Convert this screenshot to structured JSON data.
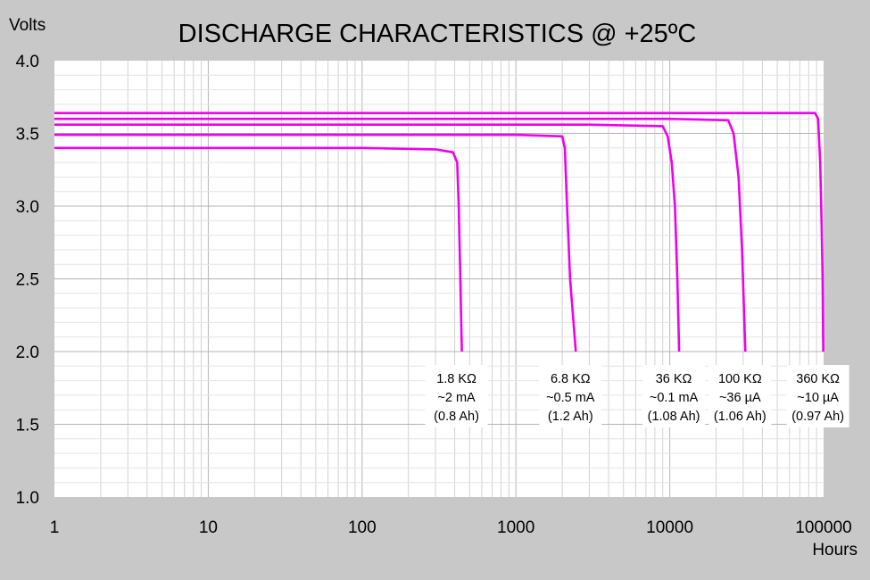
{
  "chart_data": {
    "type": "line",
    "title": "DISCHARGE CHARACTERISTICS @ +25ºC",
    "ylabel": "Volts",
    "xlabel": "Hours",
    "x_scale": "log",
    "xlim": [
      1,
      100000
    ],
    "ylim": [
      1.0,
      4.0
    ],
    "x_ticks": [
      1,
      10,
      100,
      1000,
      10000,
      100000
    ],
    "x_tick_labels": [
      "1",
      "10",
      "100",
      "1000",
      "10000",
      "100000"
    ],
    "y_ticks": [
      1.0,
      1.5,
      2.0,
      2.5,
      3.0,
      3.5,
      4.0
    ],
    "y_tick_labels": [
      "1.0",
      "1.5",
      "2.0",
      "2.5",
      "3.0",
      "3.5",
      "4.0"
    ],
    "grid": true,
    "line_color": "#ee00ee",
    "series": [
      {
        "annotation": [
          "1.8 KΩ",
          "~2 mA",
          "(0.8 Ah)"
        ],
        "points": [
          [
            1,
            3.4
          ],
          [
            100,
            3.4
          ],
          [
            300,
            3.39
          ],
          [
            390,
            3.37
          ],
          [
            415,
            3.3
          ],
          [
            425,
            3.0
          ],
          [
            435,
            2.5
          ],
          [
            445,
            2.0
          ]
        ]
      },
      {
        "annotation": [
          "6.8 KΩ",
          "~0.5 mA",
          "(1.2 Ah)"
        ],
        "points": [
          [
            1,
            3.49
          ],
          [
            1000,
            3.49
          ],
          [
            2000,
            3.48
          ],
          [
            2080,
            3.4
          ],
          [
            2150,
            3.0
          ],
          [
            2250,
            2.5
          ],
          [
            2450,
            2.0
          ]
        ]
      },
      {
        "annotation": [
          "36 KΩ",
          "~0.1 mA",
          "(1.08 Ah)"
        ],
        "points": [
          [
            1,
            3.56
          ],
          [
            3000,
            3.56
          ],
          [
            9000,
            3.55
          ],
          [
            9700,
            3.48
          ],
          [
            10300,
            3.3
          ],
          [
            10800,
            3.0
          ],
          [
            11200,
            2.5
          ],
          [
            11500,
            2.0
          ]
        ]
      },
      {
        "annotation": [
          "100 KΩ",
          "~36 µA",
          "(1.06 Ah)"
        ],
        "points": [
          [
            1,
            3.6
          ],
          [
            10000,
            3.6
          ],
          [
            24000,
            3.59
          ],
          [
            26000,
            3.5
          ],
          [
            28000,
            3.2
          ],
          [
            29500,
            2.7
          ],
          [
            31000,
            2.0
          ]
        ]
      },
      {
        "annotation": [
          "360 KΩ",
          "~10 µA",
          "(0.97 Ah)"
        ],
        "points": [
          [
            1,
            3.64
          ],
          [
            30000,
            3.64
          ],
          [
            88000,
            3.64
          ],
          [
            92000,
            3.6
          ],
          [
            95000,
            3.3
          ],
          [
            97000,
            2.9
          ],
          [
            98500,
            2.5
          ],
          [
            99500,
            2.0
          ]
        ]
      }
    ]
  }
}
